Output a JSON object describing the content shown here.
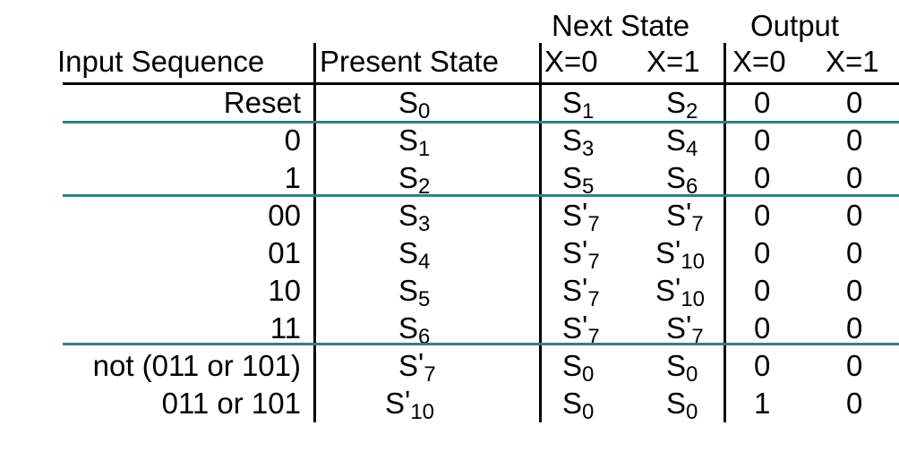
{
  "header": {
    "next_state_group": "Next State",
    "output_group": "Output",
    "input_sequence": "Input Sequence",
    "present_state": "Present State",
    "ns_x0": "X=0",
    "ns_x1": "X=1",
    "out_x0": "X=0",
    "out_x1": "X=1"
  },
  "rows": [
    {
      "input": "Reset",
      "present": {
        "base": "S",
        "sub": "0",
        "prime": ""
      },
      "ns0": {
        "base": "S",
        "sub": "1",
        "prime": ""
      },
      "ns1": {
        "base": "S",
        "sub": "2",
        "prime": ""
      },
      "out0": "0",
      "out1": "0"
    },
    {
      "input": "0",
      "present": {
        "base": "S",
        "sub": "1",
        "prime": ""
      },
      "ns0": {
        "base": "S",
        "sub": "3",
        "prime": ""
      },
      "ns1": {
        "base": "S",
        "sub": "4",
        "prime": ""
      },
      "out0": "0",
      "out1": "0"
    },
    {
      "input": "1",
      "present": {
        "base": "S",
        "sub": "2",
        "prime": ""
      },
      "ns0": {
        "base": "S",
        "sub": "5",
        "prime": ""
      },
      "ns1": {
        "base": "S",
        "sub": "6",
        "prime": ""
      },
      "out0": "0",
      "out1": "0"
    },
    {
      "input": "00",
      "present": {
        "base": "S",
        "sub": "3",
        "prime": ""
      },
      "ns0": {
        "base": "S",
        "sub": "7",
        "prime": "'"
      },
      "ns1": {
        "base": "S",
        "sub": "7",
        "prime": "'"
      },
      "out0": "0",
      "out1": "0"
    },
    {
      "input": "01",
      "present": {
        "base": "S",
        "sub": "4",
        "prime": ""
      },
      "ns0": {
        "base": "S",
        "sub": "7",
        "prime": "'"
      },
      "ns1": {
        "base": "S",
        "sub": "10",
        "prime": "'"
      },
      "out0": "0",
      "out1": "0"
    },
    {
      "input": "10",
      "present": {
        "base": "S",
        "sub": "5",
        "prime": ""
      },
      "ns0": {
        "base": "S",
        "sub": "7",
        "prime": "'"
      },
      "ns1": {
        "base": "S",
        "sub": "10",
        "prime": "'"
      },
      "out0": "0",
      "out1": "0"
    },
    {
      "input": "11",
      "present": {
        "base": "S",
        "sub": "6",
        "prime": ""
      },
      "ns0": {
        "base": "S",
        "sub": "7",
        "prime": "'"
      },
      "ns1": {
        "base": "S",
        "sub": "7",
        "prime": "'"
      },
      "out0": "0",
      "out1": "0"
    },
    {
      "input": "not (011 or 101)",
      "present": {
        "base": "S",
        "sub": "7",
        "prime": "'"
      },
      "ns0": {
        "base": "S",
        "sub": "0",
        "prime": ""
      },
      "ns1": {
        "base": "S",
        "sub": "0",
        "prime": ""
      },
      "out0": "0",
      "out1": "0"
    },
    {
      "input": "011 or 101",
      "present": {
        "base": "S",
        "sub": "10",
        "prime": "'"
      },
      "ns0": {
        "base": "S",
        "sub": "0",
        "prime": ""
      },
      "ns1": {
        "base": "S",
        "sub": "0",
        "prime": ""
      },
      "out0": "1",
      "out1": "0"
    }
  ],
  "colors": {
    "divider": "#2f7f8f",
    "rule": "#000000"
  }
}
